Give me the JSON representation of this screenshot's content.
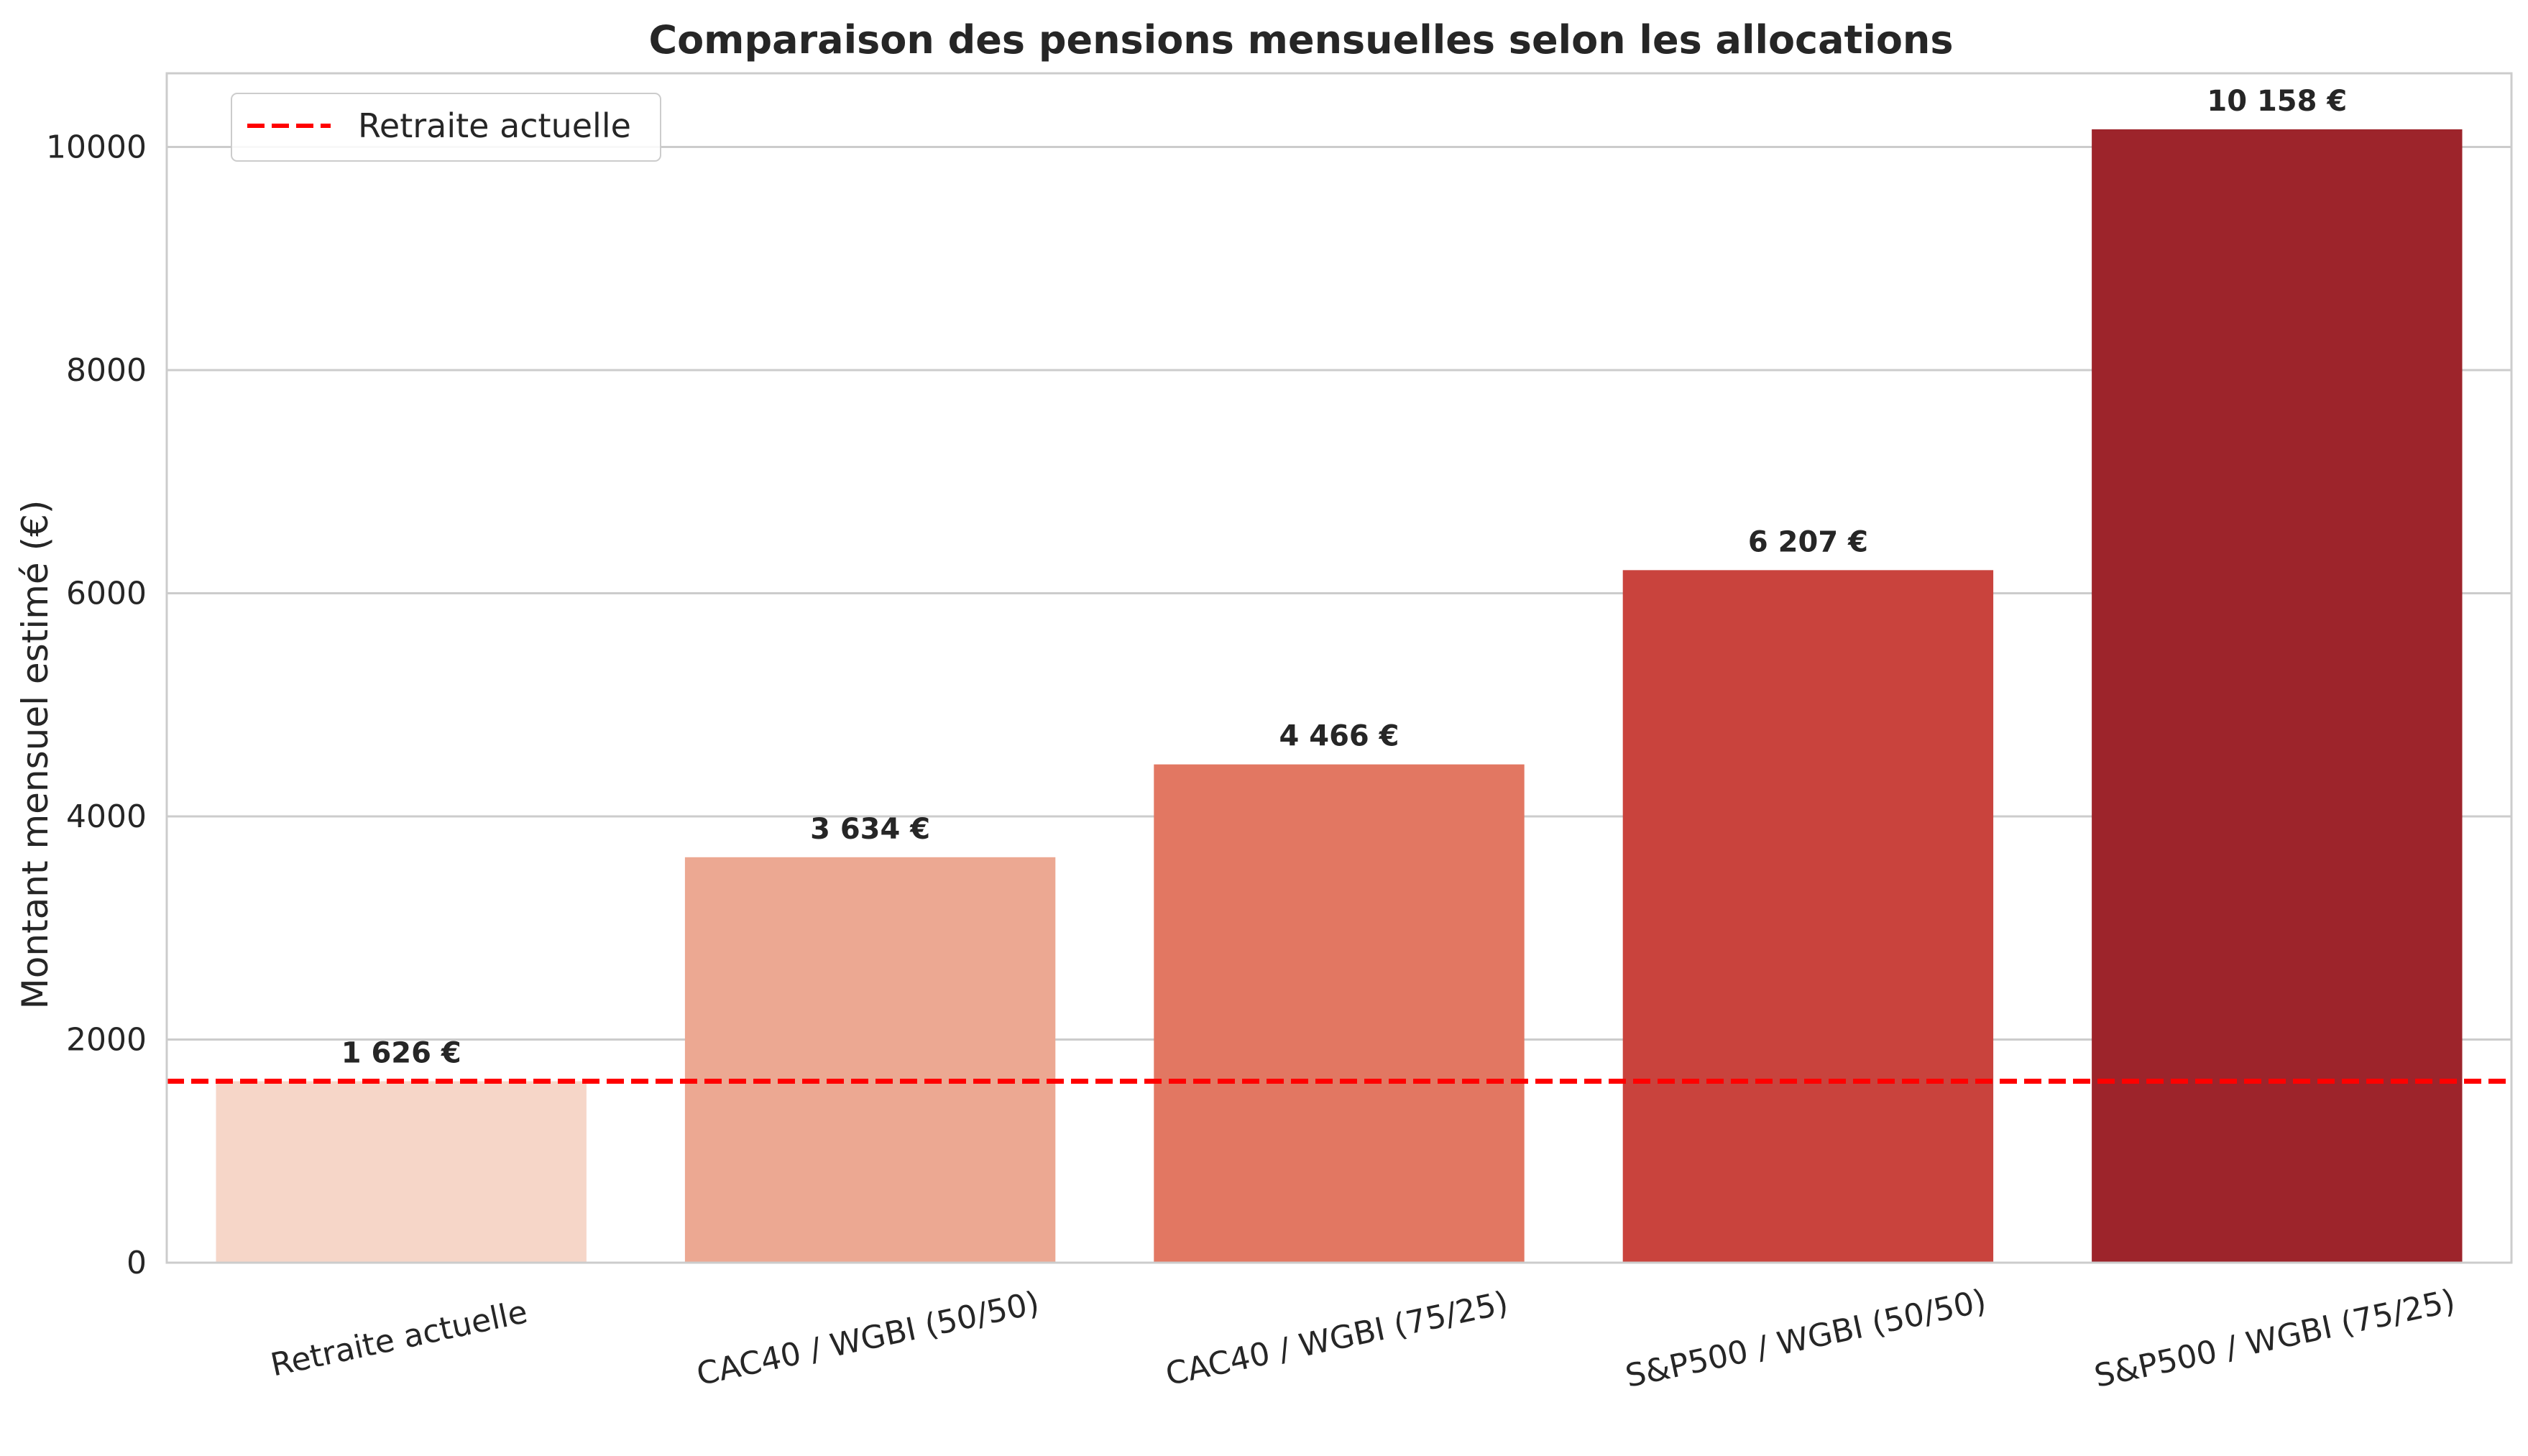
{
  "chart_data": {
    "type": "bar",
    "title": "Comparaison des pensions mensuelles selon les allocations",
    "xlabel": "",
    "ylabel": "Montant mensuel estimé (€)",
    "categories": [
      "Retraite actuelle",
      "CAC40 / WGBI (50/50)",
      "CAC40 / WGBI (75/25)",
      "S&P500 / WGBI (50/50)",
      "S&P500 / WGBI (75/25)"
    ],
    "values": [
      1626,
      3634,
      4466,
      6207,
      10158
    ],
    "data_labels": [
      "1 626 €",
      "3 634 €",
      "4 466 €",
      "6 207 €",
      "10 158 €"
    ],
    "bar_colors": [
      "#f6d6c8",
      "#eca892",
      "#e27762",
      "#c9433d",
      "#9d242b"
    ],
    "ylim": [
      0,
      10660
    ],
    "yticks": [
      0,
      2000,
      4000,
      6000,
      8000,
      10000
    ],
    "ytick_labels": [
      "0",
      "2000",
      "4000",
      "6000",
      "8000",
      "10000"
    ],
    "grid": true,
    "reference_line": {
      "label": "Retraite actuelle",
      "value": 1626,
      "color": "#ff0000",
      "style": "dashed"
    },
    "legend": {
      "placement": "top-left",
      "entries": [
        "Retraite actuelle"
      ]
    }
  }
}
